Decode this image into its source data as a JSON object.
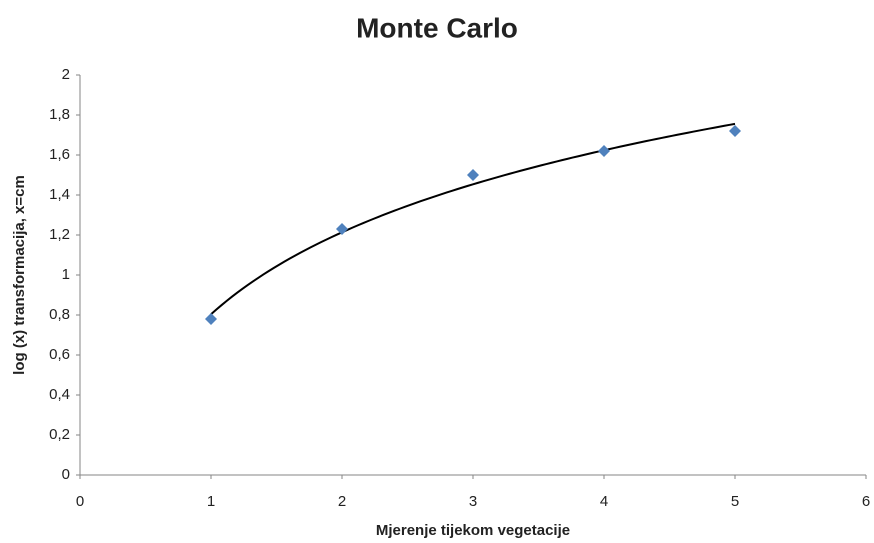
{
  "chart_data": {
    "type": "scatter",
    "title": "Monte Carlo",
    "xlabel": "Mjerenje tijekom vegetacije",
    "ylabel": "log (x) transformacija, x=cm",
    "x": [
      1,
      2,
      3,
      4,
      5
    ],
    "values": [
      0.78,
      1.23,
      1.5,
      1.62,
      1.72
    ],
    "color": "#4f81bd",
    "trendline": "logarithmic",
    "trendline_color": "#000000",
    "xlim": [
      0,
      6
    ],
    "xticks": [
      0,
      1,
      2,
      3,
      4,
      5,
      6
    ],
    "ylim": [
      0,
      2
    ],
    "yticks": [
      0,
      {
        "value": 0.2,
        "label": "0,2"
      },
      {
        "value": 0.4,
        "label": "0,4"
      },
      {
        "value": 0.6,
        "label": "0,6"
      },
      {
        "value": 0.8,
        "label": "0,8"
      },
      1,
      {
        "value": 1.2,
        "label": "1,2"
      },
      {
        "value": 1.4,
        "label": "1,4"
      },
      {
        "value": 1.6,
        "label": "1,6"
      },
      {
        "value": 1.8,
        "label": "1,8"
      },
      2
    ],
    "grid": false
  }
}
